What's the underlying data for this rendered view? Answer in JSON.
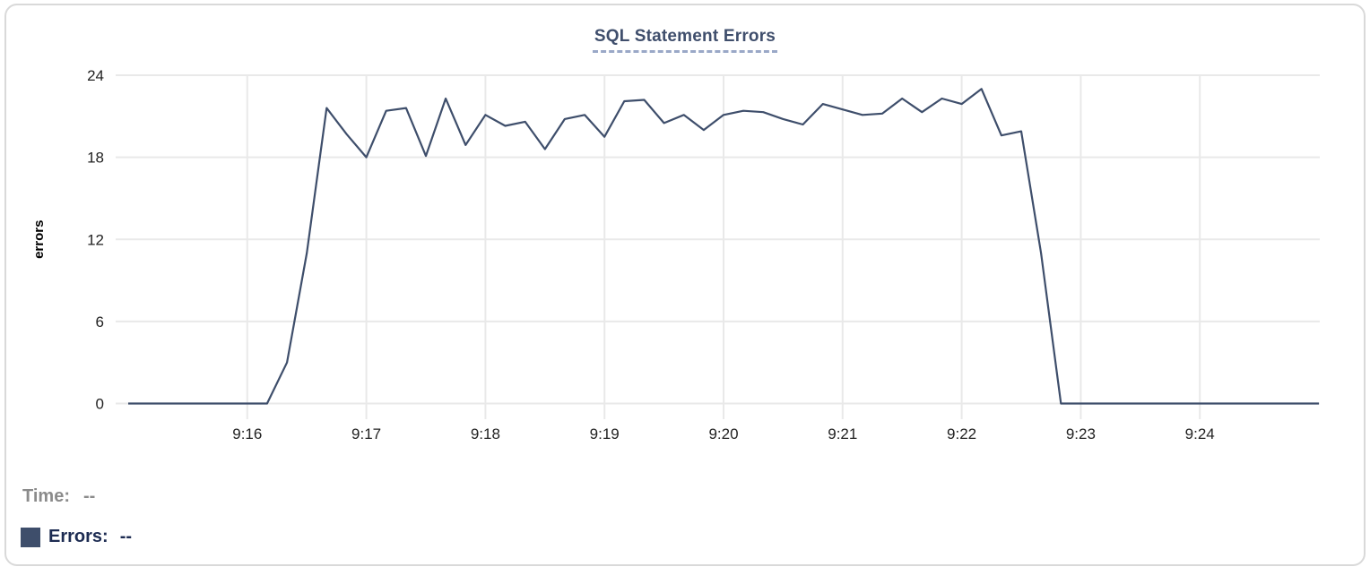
{
  "chart_data": {
    "type": "line",
    "title": "SQL Statement Errors",
    "xlabel": "",
    "ylabel": "errors",
    "ylim": [
      0,
      24
    ],
    "y_ticks": [
      0,
      6,
      12,
      18,
      24
    ],
    "x_ticks": [
      "9:16",
      "9:17",
      "9:18",
      "9:19",
      "9:20",
      "9:21",
      "9:22",
      "9:23",
      "9:24"
    ],
    "x_range": [
      "9:15:00",
      "9:25:00"
    ],
    "sample_interval_seconds": 10,
    "grid": true,
    "legend_position": "bottom-left",
    "series": [
      {
        "name": "Errors",
        "color": "#3e4e6b",
        "times": [
          "9:15:00",
          "9:15:10",
          "9:15:20",
          "9:15:30",
          "9:15:40",
          "9:15:50",
          "9:16:00",
          "9:16:10",
          "9:16:20",
          "9:16:30",
          "9:16:40",
          "9:16:50",
          "9:17:00",
          "9:17:10",
          "9:17:20",
          "9:17:30",
          "9:17:40",
          "9:17:50",
          "9:18:00",
          "9:18:10",
          "9:18:20",
          "9:18:30",
          "9:18:40",
          "9:18:50",
          "9:19:00",
          "9:19:10",
          "9:19:20",
          "9:19:30",
          "9:19:40",
          "9:19:50",
          "9:20:00",
          "9:20:10",
          "9:20:20",
          "9:20:30",
          "9:20:40",
          "9:20:50",
          "9:21:00",
          "9:21:10",
          "9:21:20",
          "9:21:30",
          "9:21:40",
          "9:21:50",
          "9:22:00",
          "9:22:10",
          "9:22:20",
          "9:22:30",
          "9:22:40",
          "9:22:50",
          "9:23:00",
          "9:23:10",
          "9:23:20",
          "9:23:30",
          "9:23:40",
          "9:23:50",
          "9:24:00",
          "9:24:10",
          "9:24:20",
          "9:24:30",
          "9:24:40",
          "9:24:50",
          "9:25:00"
        ],
        "values": [
          0,
          0,
          0,
          0,
          0,
          0,
          0,
          0,
          3,
          11,
          21.6,
          19.7,
          18,
          21.4,
          21.6,
          18.1,
          22.3,
          18.9,
          21.1,
          20.3,
          20.6,
          18.6,
          20.8,
          21.1,
          19.5,
          22.1,
          22.2,
          20.5,
          21.1,
          20,
          21.1,
          21.4,
          21.3,
          20.8,
          20.4,
          21.9,
          21.5,
          21.1,
          21.2,
          22.3,
          21.3,
          22.3,
          21.9,
          23,
          19.6,
          19.9,
          11,
          0,
          0,
          0,
          0,
          0,
          0,
          0,
          0,
          0,
          0,
          0,
          0,
          0,
          0
        ]
      }
    ]
  },
  "legend": {
    "time_label": "Time:",
    "time_value": "--",
    "errors_label": "Errors:",
    "errors_value": "--"
  },
  "colors": {
    "line": "#3e4e6b",
    "grid": "#e9e9e9",
    "title": "#3f4e6c",
    "title_underline": "#9aa8c7",
    "axis_text": "#222222",
    "axis_label": "#000000",
    "legend_time": "#8b8b8b",
    "legend_errors": "#1d2c52",
    "card_border": "#d9d9d9",
    "swatch": "#3e4e6b",
    "background": "#ffffff"
  }
}
